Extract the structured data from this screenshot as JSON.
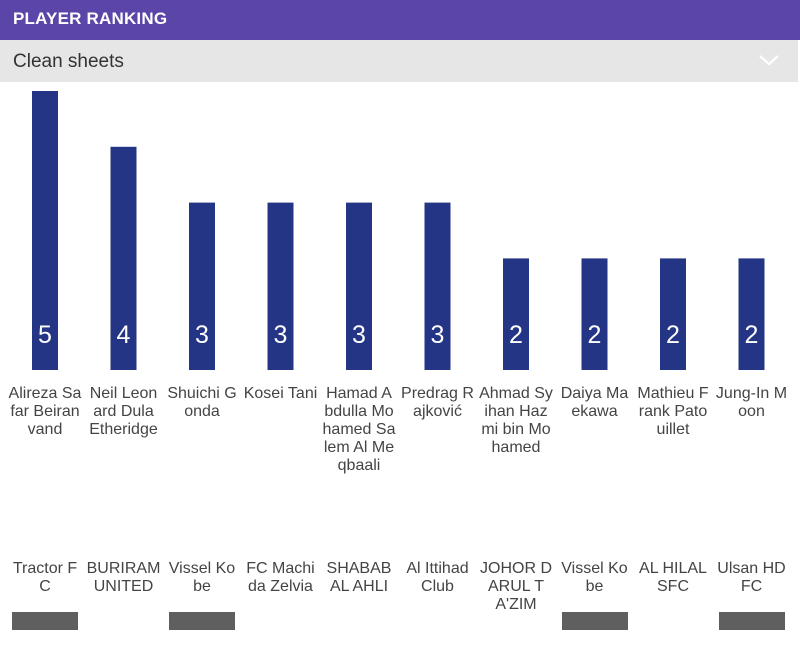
{
  "header": {
    "title": "PLAYER RANKING"
  },
  "dropdown": {
    "selected": "Clean sheets",
    "icon": "chevron-down-icon"
  },
  "colors": {
    "header_bg": "#5c45a8",
    "bar": "#253586",
    "dropdown_bg": "#e6e6e6",
    "flag": "#5f5f5f"
  },
  "chart_data": {
    "type": "bar",
    "title": "Clean sheets",
    "ylim": [
      0,
      5
    ],
    "grid": false,
    "categories": [
      "Alireza Safar Beiranvand",
      "Neil Leonard Dula Etheridge",
      "Shuichi Gonda",
      "Kosei Tani",
      "Hamad Abdulla Mohamed Salem Al Meqbaali",
      "Predrag Rajković",
      "Ahmad Syihan Hazmi bin Mohamed",
      "Daiya Maekawa",
      "Mathieu Frank Patouillet",
      "Jung-In Moon"
    ],
    "clubs": [
      "Tractor FC",
      "BURIRAM UNITED",
      "Vissel Kobe",
      "FC Machida Zelvia",
      "SHABAB AL AHLI",
      "Al Ittihad Club",
      "JOHOR DARUL TA'ZIM",
      "Vissel Kobe",
      "AL HILAL SFC",
      "Ulsan HD FC"
    ],
    "values": [
      5,
      4,
      3,
      3,
      3,
      3,
      2,
      2,
      2,
      2
    ],
    "flag_shown": [
      true,
      false,
      true,
      false,
      false,
      false,
      false,
      true,
      false,
      true
    ]
  }
}
